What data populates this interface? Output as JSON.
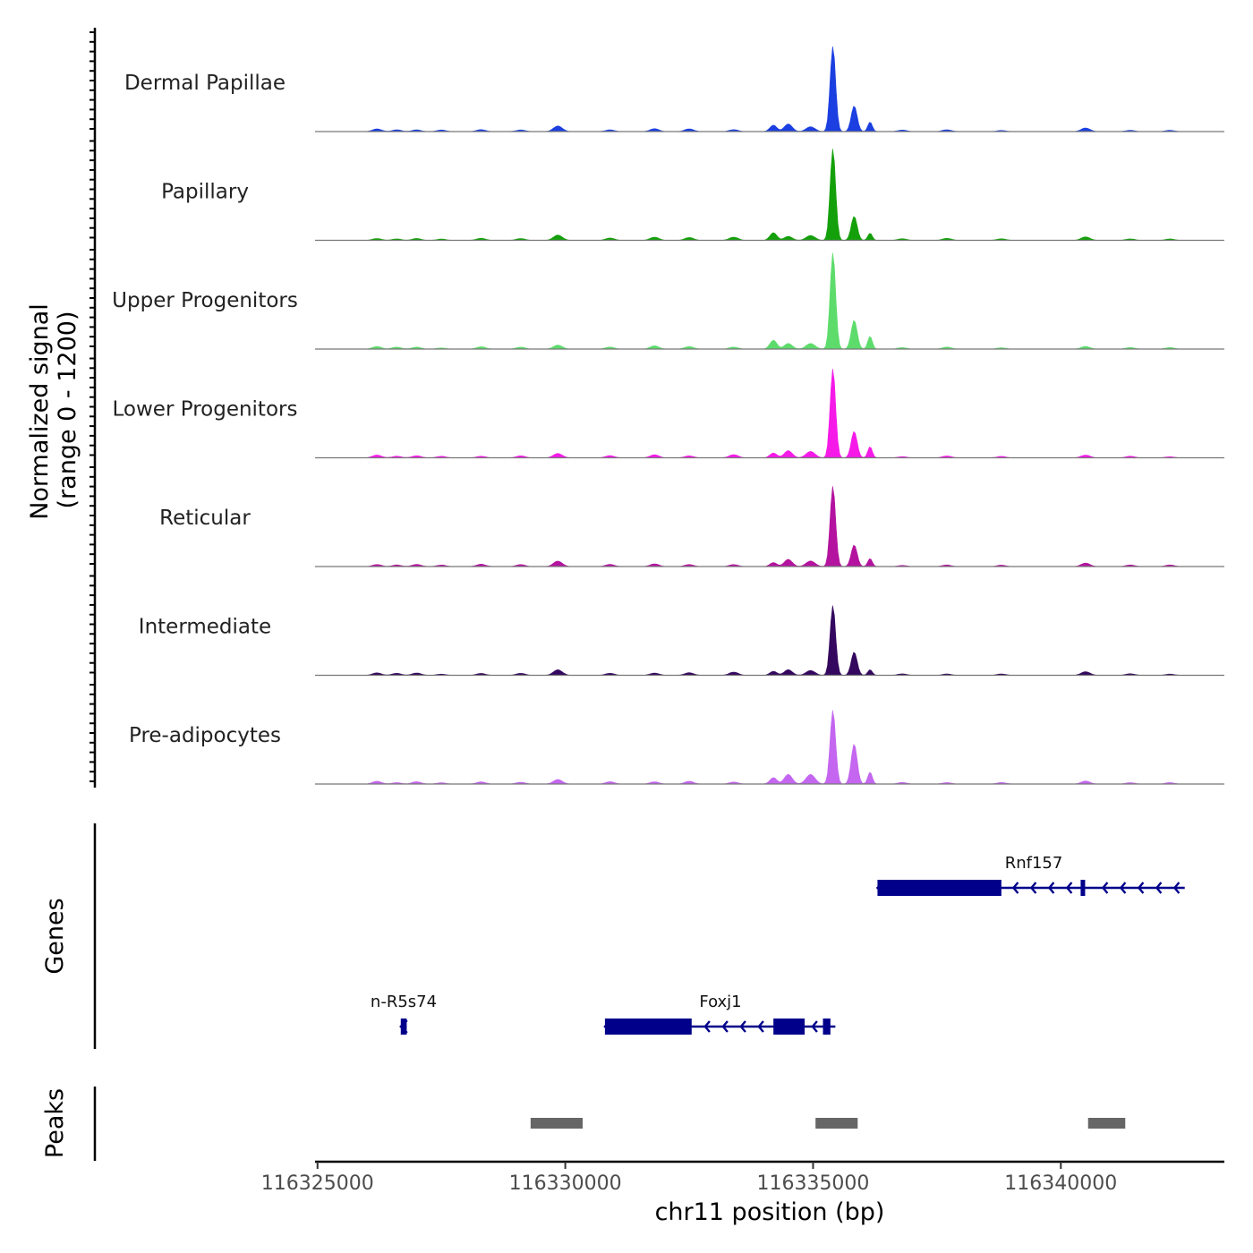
{
  "chart_data": {
    "type": "area",
    "title": "",
    "chromosome": "chr11",
    "xlabel": "chr11 position (bp)",
    "ylabel_line1": "Normalized signal",
    "ylabel_line2": "(range 0 - 1200)",
    "xlim": [
      116324950,
      116343300
    ],
    "ylim": [
      0,
      1200
    ],
    "x_ticks": [
      116325000,
      116330000,
      116335000,
      116340000
    ],
    "x_tick_labels": [
      "116325000",
      "116330000",
      "116335000",
      "116340000"
    ],
    "background_peaks": [
      {
        "pos": 116326200,
        "h": 35
      },
      {
        "pos": 116326600,
        "h": 25
      },
      {
        "pos": 116327000,
        "h": 30
      },
      {
        "pos": 116327500,
        "h": 20
      },
      {
        "pos": 116328300,
        "h": 30
      },
      {
        "pos": 116329100,
        "h": 25
      },
      {
        "pos": 116329850,
        "h": 70
      },
      {
        "pos": 116330900,
        "h": 30
      },
      {
        "pos": 116331800,
        "h": 40
      },
      {
        "pos": 116332500,
        "h": 35
      },
      {
        "pos": 116333400,
        "h": 40
      },
      {
        "pos": 116336800,
        "h": 20
      },
      {
        "pos": 116337700,
        "h": 25
      },
      {
        "pos": 116338800,
        "h": 20
      },
      {
        "pos": 116340500,
        "h": 45
      },
      {
        "pos": 116341400,
        "h": 20
      },
      {
        "pos": 116342200,
        "h": 20
      }
    ],
    "tracks": [
      {
        "name": "Dermal Papillae",
        "color": "#1b3fe0",
        "values": {
          "main": 1060,
          "second": 320,
          "third": 120,
          "left1": 80,
          "left2": 95,
          "left3": 60
        }
      },
      {
        "name": "Papillary",
        "color": "#14a00a",
        "values": {
          "main": 1140,
          "second": 300,
          "third": 90,
          "left1": 95,
          "left2": 50,
          "left3": 60
        }
      },
      {
        "name": "Upper Progenitors",
        "color": "#5ddc6c",
        "values": {
          "main": 1200,
          "second": 360,
          "third": 160,
          "left1": 110,
          "left2": 70,
          "left3": 70
        }
      },
      {
        "name": "Lower Progenitors",
        "color": "#f51ae8",
        "values": {
          "main": 1110,
          "second": 330,
          "third": 140,
          "left1": 60,
          "left2": 90,
          "left3": 80
        }
      },
      {
        "name": "Reticular",
        "color": "#b3139f",
        "values": {
          "main": 1000,
          "second": 270,
          "third": 100,
          "left1": 50,
          "left2": 90,
          "left3": 70
        }
      },
      {
        "name": "Intermediate",
        "color": "#34085e",
        "values": {
          "main": 870,
          "second": 290,
          "third": 70,
          "left1": 50,
          "left2": 70,
          "left3": 60
        }
      },
      {
        "name": "Pre-adipocytes",
        "color": "#c466f0",
        "values": {
          "main": 920,
          "second": 500,
          "third": 150,
          "left1": 80,
          "left2": 120,
          "left3": 120
        }
      }
    ],
    "genes_panel_label": "Genes",
    "peaks_panel_label": "Peaks",
    "gene_color": "#00008b",
    "genes": [
      {
        "name": "n-R5s74",
        "row": 2,
        "start": 116326680,
        "end": 116326800,
        "strand": "-",
        "exons": [
          [
            116326680,
            116326800
          ]
        ]
      },
      {
        "name": "Foxj1",
        "row": 2,
        "start": 116330800,
        "end": 116335450,
        "strand": "-",
        "exons": [
          [
            116330800,
            116332550
          ],
          [
            116334200,
            116334830
          ],
          [
            116335200,
            116335350
          ]
        ]
      },
      {
        "name": "Rnf157",
        "row": 1,
        "start": 116336300,
        "end": 116342500,
        "strand": "-",
        "exons": [
          [
            116336300,
            116338800
          ],
          [
            116340400,
            116340450
          ]
        ]
      }
    ],
    "peak_color": "#666666",
    "peaks": [
      [
        116329300,
        116330350
      ],
      [
        116335050,
        116335900
      ],
      [
        116340550,
        116341300
      ]
    ]
  }
}
